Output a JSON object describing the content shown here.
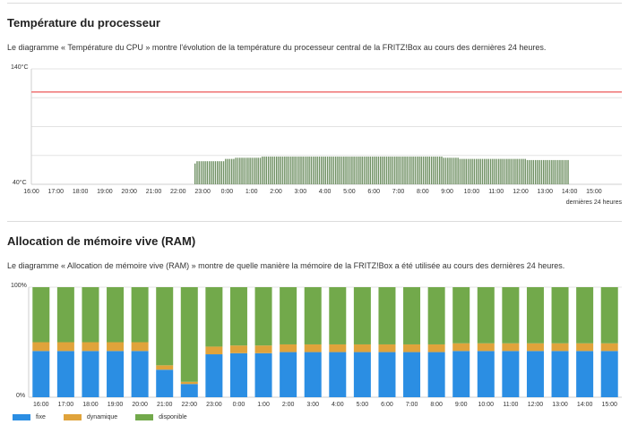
{
  "cpu_section": {
    "title": "Température du processeur",
    "description": "Le diagramme « Température du CPU » montre l'évolution de la température du processeur central de la FRITZ!Box au cours des dernières 24 heures.",
    "period_label": "dernières 24 heures",
    "colors": {
      "bars": "#6e8f62",
      "threshold": "#f07d7d",
      "grid": "#e3e3e3"
    }
  },
  "ram_section": {
    "title": "Allocation de mémoire vive (RAM)",
    "description": "Le diagramme « Allocation de mémoire vive (RAM) » montre de quelle manière la mémoire de la FRITZ!Box a été utilisée au cours des dernières 24 heures.",
    "legend": [
      {
        "label": "fixe",
        "color": "#2b8ee3"
      },
      {
        "label": "dynamique",
        "color": "#e0a33b"
      },
      {
        "label": "disponible",
        "color": "#72a94b"
      }
    ]
  },
  "chart_data": [
    {
      "type": "bar",
      "title": "Température du processeur",
      "ylim": [
        40,
        140
      ],
      "y_tick_labels": [
        "140°C",
        "40°C"
      ],
      "x_tick_labels": [
        "16:00",
        "17:00",
        "18:00",
        "19:00",
        "20:00",
        "21:00",
        "22:00",
        "23:00",
        "0:00",
        "1:00",
        "2:00",
        "3:00",
        "4:00",
        "5:00",
        "6:00",
        "7:00",
        "8:00",
        "9:00",
        "10:00",
        "11:00",
        "12:00",
        "13:00",
        "14:00",
        "15:00"
      ],
      "threshold": 120,
      "series": [
        {
          "segments": [
            {
              "from": "22:40",
              "to": "22:45",
              "value": 58
            },
            {
              "from": "22:45",
              "to": "23:55",
              "value": 60
            },
            {
              "from": "23:55",
              "to": "0:20",
              "value": 62
            },
            {
              "from": "0:20",
              "to": "1:25",
              "value": 63
            },
            {
              "from": "1:25",
              "to": "8:50",
              "value": 64
            },
            {
              "from": "8:50",
              "to": "9:30",
              "value": 63
            },
            {
              "from": "9:30",
              "to": "12:15",
              "value": 62
            },
            {
              "from": "12:15",
              "to": "14:00",
              "value": 61
            },
            {
              "from": "14:00",
              "to": "16:00",
              "value": 63
            }
          ]
        }
      ]
    },
    {
      "type": "bar",
      "title": "Allocation de mémoire vive (RAM)",
      "stacked": true,
      "ylim": [
        0,
        100
      ],
      "y_tick_labels": [
        "100%",
        "0%"
      ],
      "categories": [
        "16:00",
        "17:00",
        "18:00",
        "19:00",
        "20:00",
        "21:00",
        "22:00",
        "23:00",
        "0:00",
        "1:00",
        "2:00",
        "3:00",
        "4:00",
        "5:00",
        "6:00",
        "7:00",
        "8:00",
        "9:00",
        "10:00",
        "11:00",
        "12:00",
        "13:00",
        "14:00",
        "15:00"
      ],
      "series": [
        {
          "name": "fixe",
          "values": [
            42,
            42,
            42,
            42,
            42,
            25,
            12,
            39,
            40,
            40,
            41,
            41,
            41,
            41,
            41,
            41,
            41,
            42,
            42,
            42,
            42,
            42,
            42,
            42
          ]
        },
        {
          "name": "dynamique",
          "values": [
            8,
            8,
            8,
            8,
            8,
            4,
            2,
            7,
            7,
            7,
            7,
            7,
            7,
            7,
            7,
            7,
            7,
            7,
            7,
            7,
            7,
            7,
            7,
            7
          ]
        },
        {
          "name": "disponible",
          "values": [
            50,
            50,
            50,
            50,
            50,
            71,
            86,
            54,
            53,
            53,
            52,
            52,
            52,
            52,
            52,
            52,
            52,
            51,
            51,
            51,
            51,
            51,
            51,
            51
          ]
        }
      ]
    }
  ]
}
